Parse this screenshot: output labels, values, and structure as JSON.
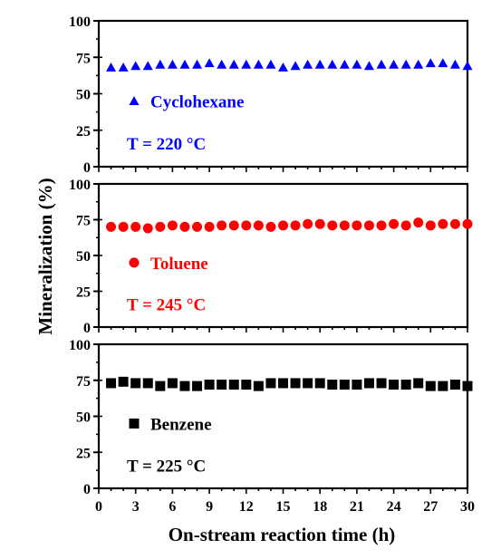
{
  "chart_data": {
    "type": "scatter",
    "ylabel": "Mineralization (%)",
    "xlabel": "On-stream reaction time (h)",
    "x_ticks": [
      "0",
      "3",
      "6",
      "9",
      "12",
      "15",
      "18",
      "21",
      "24",
      "27",
      "30"
    ],
    "y_ticks": [
      "0",
      "25",
      "50",
      "75",
      "100"
    ],
    "xlim": [
      0,
      30
    ],
    "ylim": [
      0,
      100
    ],
    "grid": false,
    "panels": [
      {
        "series_name": "Cyclohexane",
        "condition": "T = 220 °C",
        "marker": "triangle",
        "color": "#0000ff",
        "x": [
          1,
          2,
          3,
          4,
          5,
          6,
          7,
          8,
          9,
          10,
          11,
          12,
          13,
          14,
          15,
          16,
          17,
          18,
          19,
          20,
          21,
          22,
          23,
          24,
          25,
          26,
          27,
          28,
          29,
          30
        ],
        "y": [
          68,
          68,
          69,
          69,
          70,
          70,
          70,
          70,
          71,
          70,
          70,
          70,
          70,
          70,
          68,
          69,
          70,
          70,
          70,
          70,
          70,
          69,
          70,
          70,
          70,
          70,
          71,
          71,
          70,
          69
        ]
      },
      {
        "series_name": "Toluene",
        "condition": "T = 245 °C",
        "marker": "circle",
        "color": "#ff0000",
        "x": [
          1,
          2,
          3,
          4,
          5,
          6,
          7,
          8,
          9,
          10,
          11,
          12,
          13,
          14,
          15,
          16,
          17,
          18,
          19,
          20,
          21,
          22,
          23,
          24,
          25,
          26,
          27,
          28,
          29,
          30
        ],
        "y": [
          70,
          70,
          70,
          69,
          70,
          71,
          70,
          70,
          70,
          71,
          71,
          71,
          71,
          70,
          71,
          71,
          72,
          72,
          71,
          71,
          71,
          71,
          71,
          72,
          71,
          73,
          71,
          72,
          72,
          72
        ]
      },
      {
        "series_name": "Benzene",
        "condition": "T = 225 °C",
        "marker": "square",
        "color": "#000000",
        "x": [
          1,
          2,
          3,
          4,
          5,
          6,
          7,
          8,
          9,
          10,
          11,
          12,
          13,
          14,
          15,
          16,
          17,
          18,
          19,
          20,
          21,
          22,
          23,
          24,
          25,
          26,
          27,
          28,
          29,
          30
        ],
        "y": [
          73,
          74,
          73,
          73,
          71,
          73,
          71,
          71,
          72,
          72,
          72,
          72,
          71,
          73,
          73,
          73,
          73,
          73,
          72,
          72,
          72,
          73,
          73,
          72,
          72,
          73,
          71,
          71,
          72,
          71
        ]
      }
    ]
  }
}
